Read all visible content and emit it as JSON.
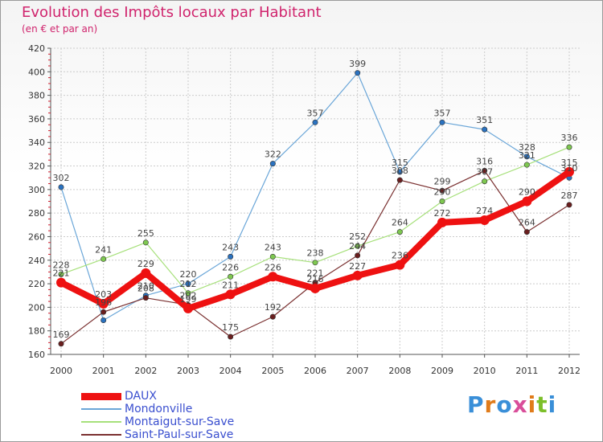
{
  "header": {
    "title": "Evolution des Impôts locaux par Habitant",
    "subtitle": "(en € et par an)"
  },
  "logo": {
    "text": "Proxiti",
    "letter_colors": [
      "#3a8fd8",
      "#e07b1a",
      "#3a8fd8",
      "#d94e9a",
      "#e07b1a",
      "#7cbf2a",
      "#3a8fd8"
    ]
  },
  "chart_data": {
    "type": "line",
    "title": "Evolution des Impôts locaux par Habitant",
    "subtitle": "(en € et par an)",
    "xlabel": "",
    "ylabel": "",
    "x": [
      "2000",
      "2001",
      "2002",
      "2003",
      "2004",
      "2005",
      "2006",
      "2007",
      "2008",
      "2009",
      "2010",
      "2011",
      "2012"
    ],
    "ylim": [
      160,
      420
    ],
    "yticks": [
      160,
      180,
      200,
      220,
      240,
      260,
      280,
      300,
      320,
      340,
      360,
      380,
      400,
      420
    ],
    "grid": true,
    "legend_position": "bottom-left",
    "series": [
      {
        "name": "DAUX",
        "color": "#ee1111",
        "marker": "#ee1111",
        "width": 8,
        "values": [
          221,
          203,
          229,
          199,
          211,
          226,
          216,
          227,
          236,
          272,
          274,
          290,
          315
        ],
        "labels": [
          "221",
          "203",
          "229",
          "199",
          "211",
          "226",
          "216",
          "227",
          "236",
          "272",
          "274",
          "290",
          "315"
        ]
      },
      {
        "name": "Mondonville",
        "color": "#6aa6d8",
        "marker": "#2a72c0",
        "width": 1.2,
        "values": [
          302,
          189,
          210,
          220,
          243,
          322,
          357,
          399,
          315,
          357,
          351,
          328,
          310
        ],
        "labels": [
          "302",
          "",
          "210",
          "220",
          "243",
          "322",
          "357",
          "399",
          "315",
          "357",
          "351",
          "328",
          "310"
        ]
      },
      {
        "name": "Montaigut-sur-Save",
        "color": "#a6e07a",
        "marker": "#7ec850",
        "width": 1.2,
        "values": [
          228,
          241,
          255,
          212,
          226,
          243,
          238,
          252,
          264,
          290,
          307,
          321,
          336
        ],
        "labels": [
          "228",
          "241",
          "255",
          "212",
          "226",
          "243",
          "238",
          "252",
          "264",
          "290",
          "307",
          "321",
          "336"
        ]
      },
      {
        "name": "Saint-Paul-sur-Save",
        "color": "#7a3030",
        "marker": "#6a1e1e",
        "width": 1.2,
        "values": [
          169,
          196,
          208,
          202,
          175,
          192,
          221,
          244,
          308,
          299,
          316,
          264,
          287
        ],
        "labels": [
          "169",
          "196",
          "208",
          "202",
          "175",
          "192",
          "221",
          "244",
          "308",
          "299",
          "316",
          "264",
          "287"
        ]
      }
    ]
  }
}
